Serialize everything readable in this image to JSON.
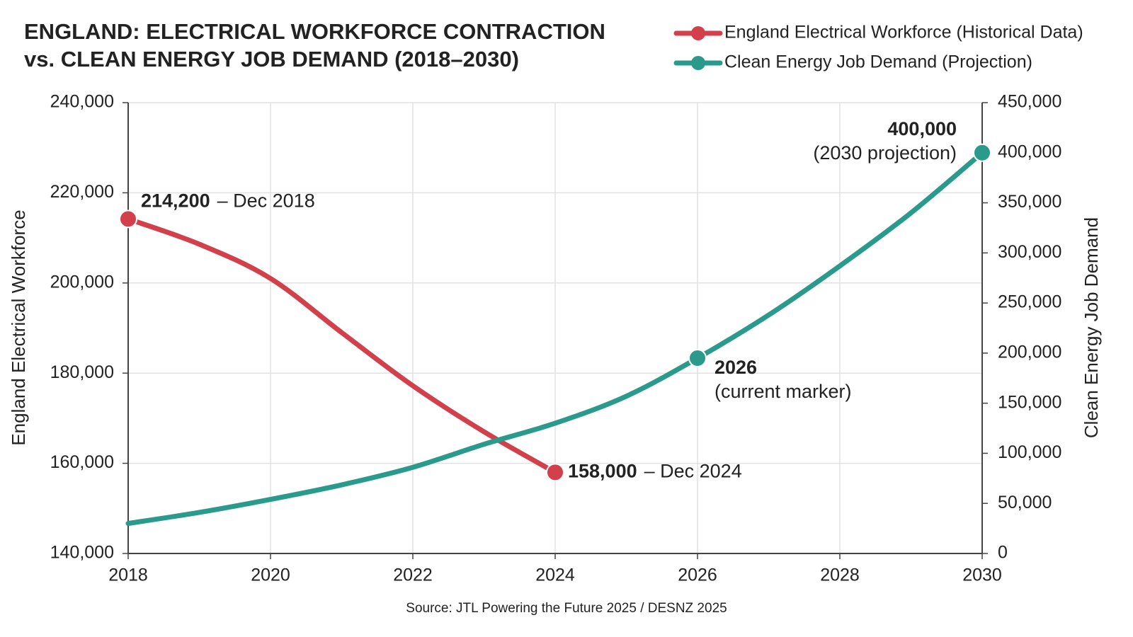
{
  "chart_data": {
    "type": "line",
    "title": [
      "ENGLAND: ELECTRICAL WORKFORCE CONTRACTION",
      "vs. CLEAN ENERGY JOB DEMAND (2018–2030)"
    ],
    "source": "Source: JTL Powering the Future 2025 / DESNZ 2025",
    "y_label": "England Electrical Workforce",
    "y2_label": "Clean Energy Job Demand",
    "x": [
      2018,
      2019,
      2020,
      2021,
      2022,
      2023,
      2024,
      2025,
      2026,
      2027,
      2028,
      2029,
      2030
    ],
    "xlim": [
      2018,
      2030
    ],
    "xticks": [
      2018,
      2020,
      2022,
      2024,
      2026,
      2028,
      2030
    ],
    "ylim": [
      140000,
      240000
    ],
    "yticks": [
      {
        "value": 140000,
        "label": "140,000"
      },
      {
        "value": 160000,
        "label": "160,000"
      },
      {
        "value": 180000,
        "label": "180,000"
      },
      {
        "value": 200000,
        "label": "200,000"
      },
      {
        "value": 220000,
        "label": "220,000"
      },
      {
        "value": 240000,
        "label": "240,000"
      }
    ],
    "y2lim": [
      0,
      450000
    ],
    "y2ticks": [
      0,
      {
        "value": 50000,
        "label": "50,000"
      },
      {
        "value": 100000,
        "label": "100,000"
      },
      {
        "value": 150000,
        "label": "150,000"
      },
      {
        "value": 200000,
        "label": "200,000"
      },
      {
        "value": 250000,
        "label": "250,000"
      },
      {
        "value": 300000,
        "label": "300,000"
      },
      {
        "value": 350000,
        "label": "350,000"
      },
      {
        "value": 400000,
        "label": "400,000"
      },
      {
        "value": 450000,
        "label": "450,000"
      }
    ],
    "grid": true,
    "legend": "top-right",
    "series": [
      {
        "name": "England Electrical Workforce (Historical Data)",
        "color": "#d2404c",
        "axis": "y",
        "values": [
          214200,
          208600,
          201000,
          189000,
          177200,
          167000,
          158000,
          null,
          null,
          null,
          null,
          null,
          null
        ],
        "annotations": [
          {
            "x": 2018,
            "label": "214,200",
            "note": "– Dec 2018"
          },
          {
            "x": 2024,
            "label": "158,000",
            "note": "– Dec 2024"
          }
        ]
      },
      {
        "name": "Clean Energy Job Demand (Projection)",
        "color": "#2a9a8c",
        "axis": "y2",
        "values": [
          30000,
          41000,
          54000,
          68500,
          86000,
          109000,
          130000,
          157000,
          195000,
          238000,
          287000,
          340000,
          400000
        ],
        "annotations": [
          {
            "x": 2026,
            "label": "2026",
            "note": "(current marker)"
          },
          {
            "x": 2030,
            "label": "400,000",
            "note": "(2030 projection)"
          }
        ]
      }
    ]
  }
}
